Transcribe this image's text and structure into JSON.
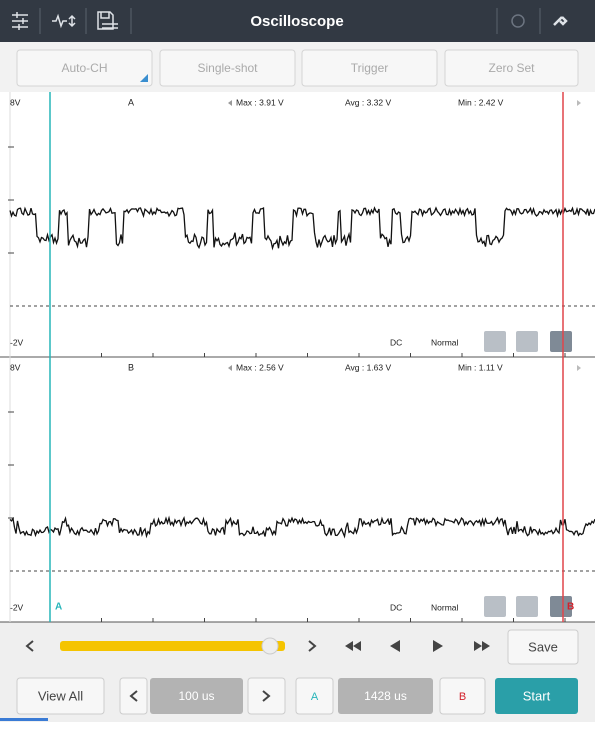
{
  "header": {
    "title": "Oscilloscope"
  },
  "toolbar": [
    "Auto-CH",
    "Single-shot",
    "Trigger",
    "Zero Set"
  ],
  "channels": [
    {
      "top": "8V",
      "name": "A",
      "max": "Max : 3.91 V",
      "avg": "Avg : 3.32 V",
      "min": "Min : 2.42 V",
      "bottom": "-2V",
      "coupling": "DC",
      "mode": "Normal"
    },
    {
      "top": "8V",
      "name": "B",
      "max": "Max : 2.56 V",
      "avg": "Avg : 1.63 V",
      "min": "Min : 1.11 V",
      "bottom": "-2V",
      "coupling": "DC",
      "mode": "Normal"
    }
  ],
  "cursors": {
    "a": "A",
    "b": "B"
  },
  "controls": {
    "save": "Save",
    "view_all": "View All",
    "timebase": "100 us",
    "cursor_a": "A",
    "cursor_position": "1428 us",
    "cursor_b": "B",
    "start": "Start"
  }
}
